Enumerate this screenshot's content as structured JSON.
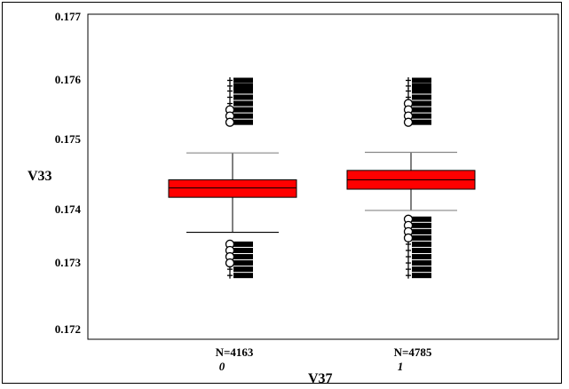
{
  "chart_data": {
    "type": "boxplot",
    "title": "",
    "xlabel": "V37",
    "ylabel": "V33",
    "ylim": [
      0.172,
      0.177
    ],
    "yticks": [
      "0.177",
      "0.176",
      "0.175",
      "0.174",
      "0.173",
      "0.172"
    ],
    "categories": [
      "0",
      "1"
    ],
    "counts": [
      "N=4163",
      "N=4785"
    ],
    "box_color": "#ff0000",
    "series": [
      {
        "category": "0",
        "count": 4163,
        "whisker_low": 0.17354,
        "q1": 0.1741,
        "median": 0.17425,
        "q3": 0.17438,
        "whisker_high": 0.17481,
        "outliers_high": [
          {
            "v": 0.17597,
            "m": "+"
          },
          {
            "v": 0.17588,
            "m": "+"
          },
          {
            "v": 0.1758,
            "m": "+"
          },
          {
            "v": 0.1757,
            "m": "+"
          },
          {
            "v": 0.1756,
            "m": "+"
          },
          {
            "v": 0.1755,
            "m": "o"
          },
          {
            "v": 0.1754,
            "m": "o"
          },
          {
            "v": 0.1753,
            "m": "o"
          }
        ],
        "outliers_low": [
          {
            "v": 0.17335,
            "m": "o"
          },
          {
            "v": 0.17325,
            "m": "o"
          },
          {
            "v": 0.17315,
            "m": "o"
          },
          {
            "v": 0.17305,
            "m": "o"
          },
          {
            "v": 0.17295,
            "m": "+"
          },
          {
            "v": 0.17285,
            "m": "+"
          }
        ]
      },
      {
        "category": "1",
        "count": 4785,
        "whisker_low": 0.17389,
        "q1": 0.17423,
        "median": 0.17438,
        "q3": 0.17453,
        "whisker_high": 0.17482,
        "outliers_high": [
          {
            "v": 0.17597,
            "m": "+"
          },
          {
            "v": 0.17588,
            "m": "+"
          },
          {
            "v": 0.1758,
            "m": "+"
          },
          {
            "v": 0.1757,
            "m": "+"
          },
          {
            "v": 0.1756,
            "m": "o"
          },
          {
            "v": 0.1755,
            "m": "o"
          },
          {
            "v": 0.1754,
            "m": "o"
          },
          {
            "v": 0.1753,
            "m": "o"
          }
        ],
        "outliers_low": [
          {
            "v": 0.17375,
            "m": "o"
          },
          {
            "v": 0.17365,
            "m": "o"
          },
          {
            "v": 0.17355,
            "m": "o"
          },
          {
            "v": 0.17345,
            "m": "o"
          },
          {
            "v": 0.17335,
            "m": "+"
          },
          {
            "v": 0.17325,
            "m": "+"
          },
          {
            "v": 0.17315,
            "m": "+"
          },
          {
            "v": 0.17305,
            "m": "+"
          },
          {
            "v": 0.17295,
            "m": "+"
          },
          {
            "v": 0.17285,
            "m": "+"
          }
        ]
      }
    ]
  }
}
